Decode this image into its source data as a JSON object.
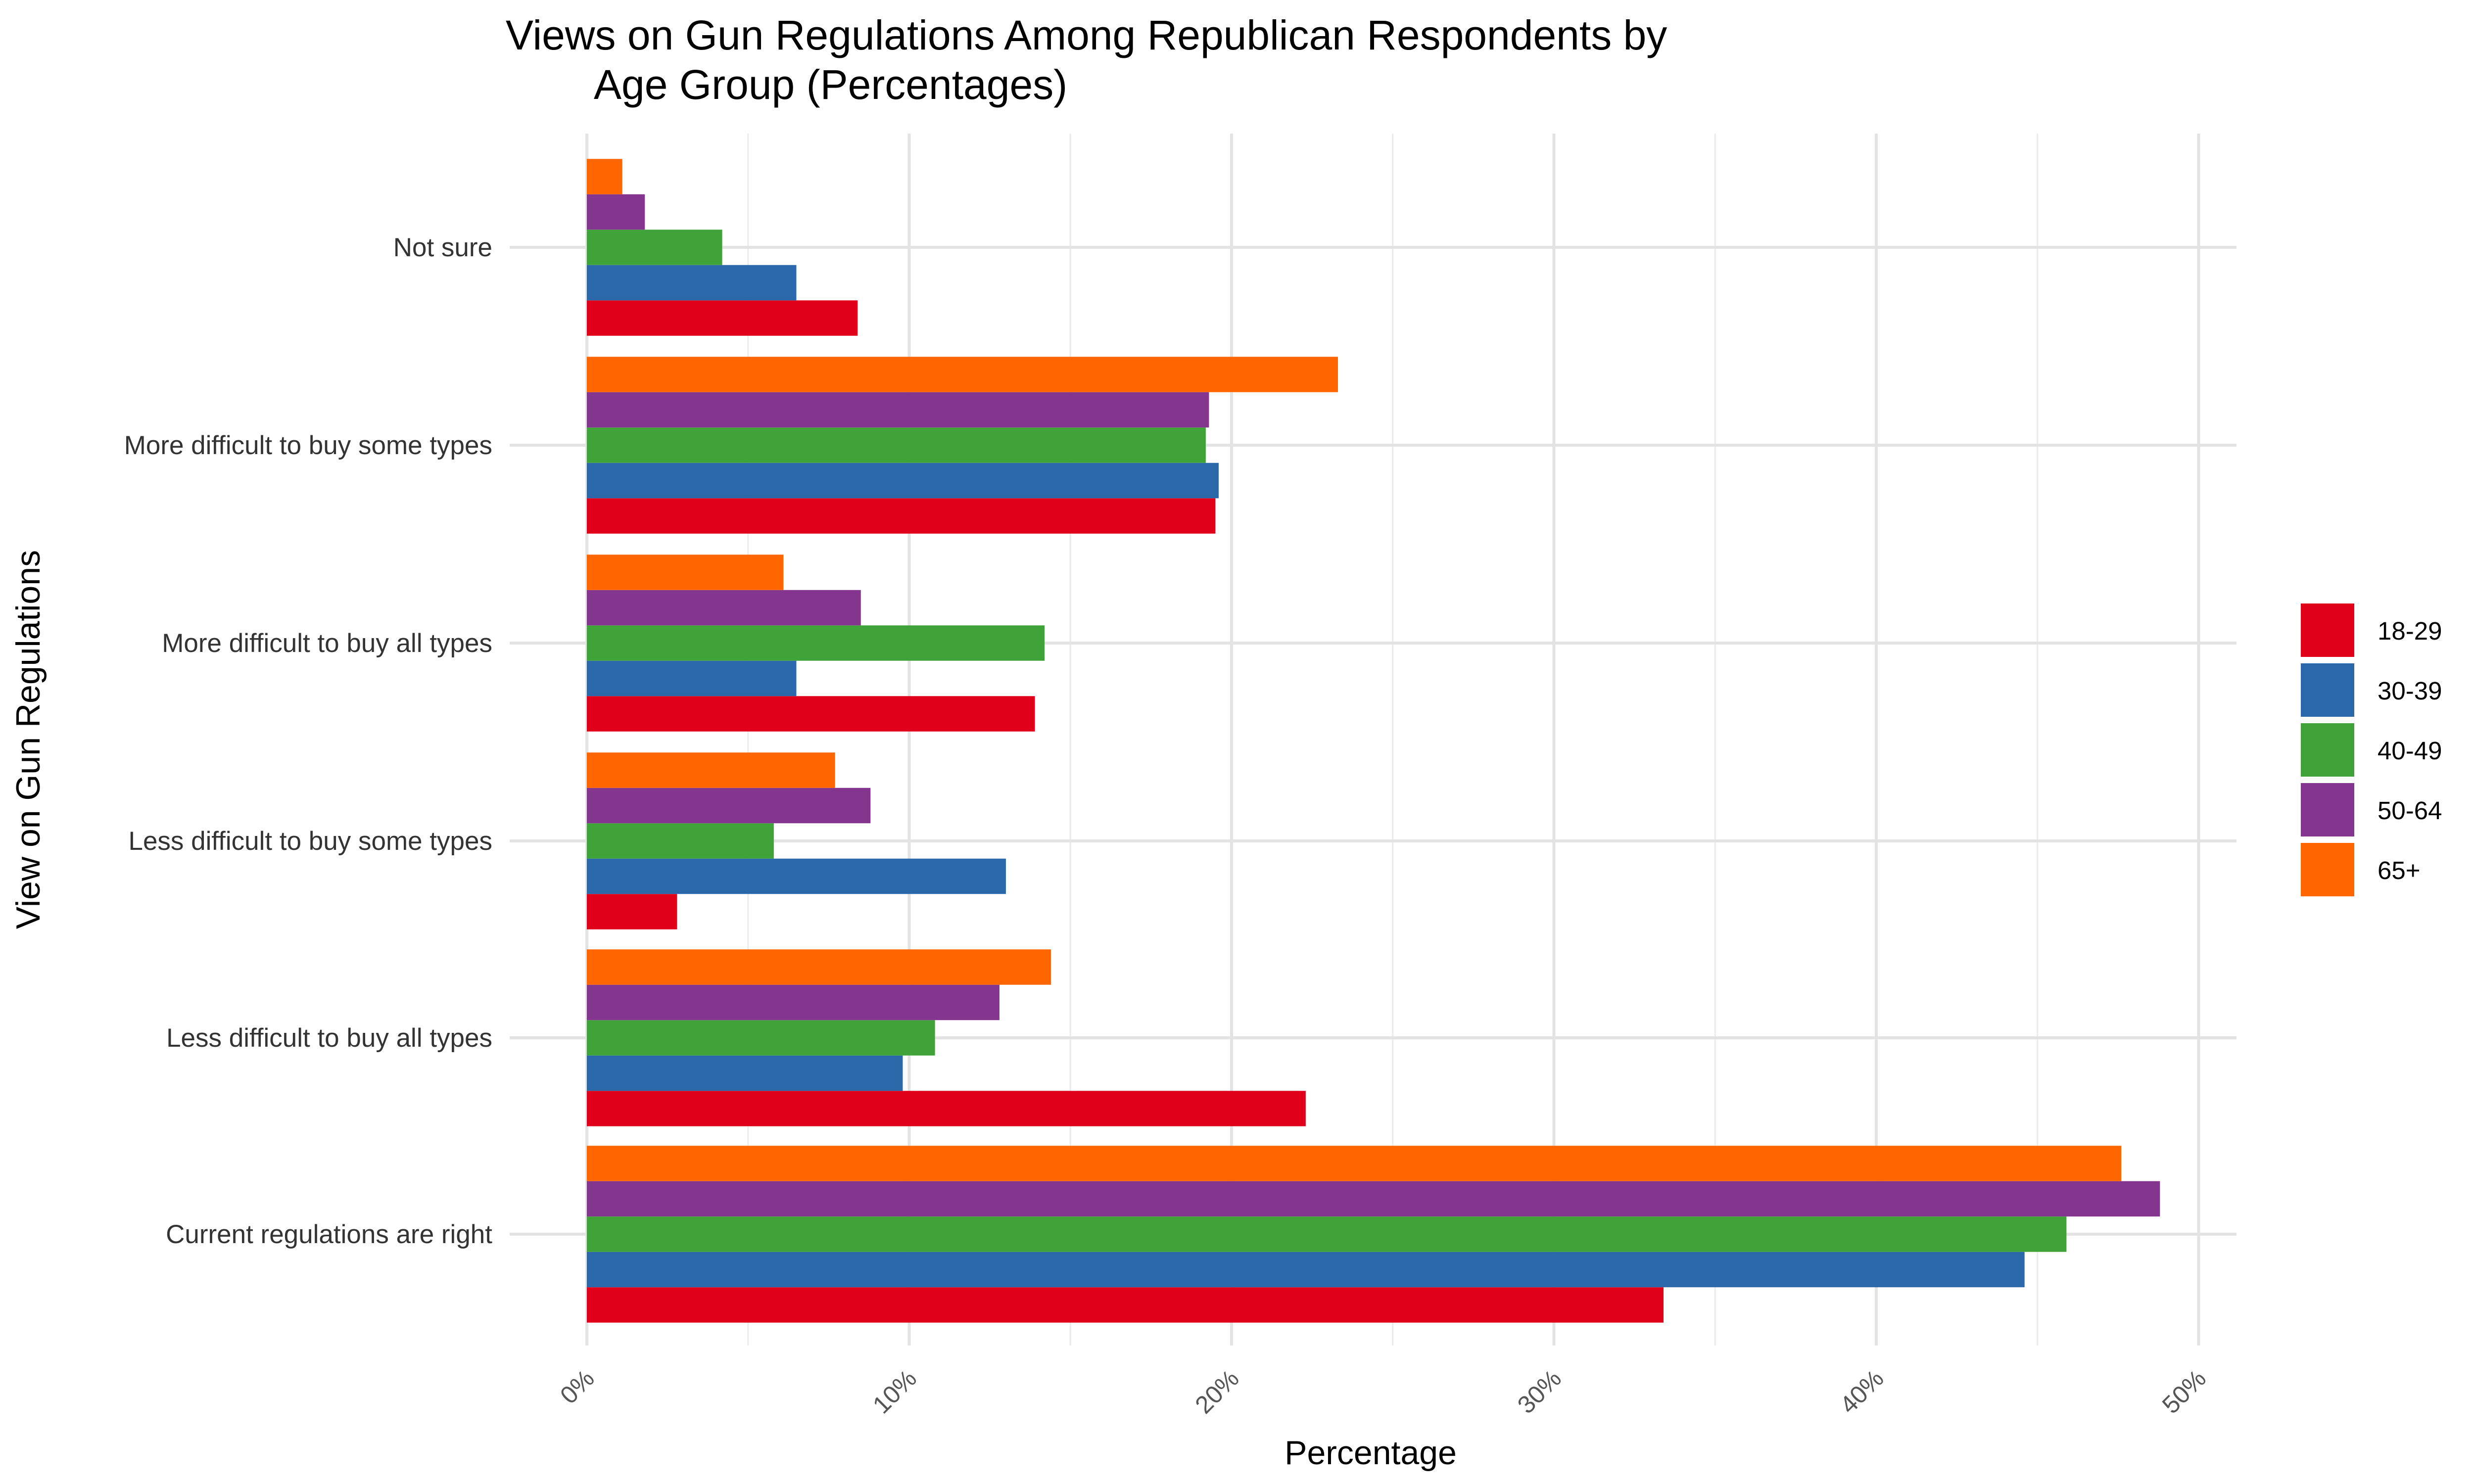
{
  "chart_data": {
    "type": "bar",
    "orientation": "horizontal",
    "title": "Views on Gun Regulations Among Republican Respondents by Age Group (Percentages)",
    "title_lines": [
      "Views on Gun Regulations Among Republican Respondents by",
      "Age Group (Percentages)"
    ],
    "xlabel": "Percentage",
    "ylabel": "View on Gun Regulations",
    "xlim": [
      0,
      51
    ],
    "x_ticks": [
      0,
      10,
      20,
      30,
      40,
      50
    ],
    "x_tick_labels": [
      "0%",
      "10%",
      "20%",
      "30%",
      "40%",
      "50%"
    ],
    "grid": true,
    "legend_position": "right",
    "categories": [
      "Current regulations are right",
      "Less difficult to buy all types",
      "Less difficult to buy some types",
      "More difficult to buy all types",
      "More difficult to buy some types",
      "Not sure"
    ],
    "series": [
      {
        "name": "18-29",
        "color": "#E0001A",
        "values": [
          33.4,
          22.3,
          2.8,
          13.9,
          19.5,
          8.4
        ]
      },
      {
        "name": "30-39",
        "color": "#2B68AA",
        "values": [
          44.6,
          9.8,
          13.0,
          6.5,
          19.6,
          6.5
        ]
      },
      {
        "name": "40-49",
        "color": "#3FA33A",
        "values": [
          45.9,
          10.8,
          5.8,
          14.2,
          19.2,
          4.2
        ]
      },
      {
        "name": "50-64",
        "color": "#84368F",
        "values": [
          48.8,
          12.8,
          8.8,
          8.5,
          19.3,
          1.8
        ]
      },
      {
        "name": "65+",
        "color": "#FF6600",
        "values": [
          47.6,
          14.4,
          7.7,
          6.1,
          23.3,
          1.1
        ]
      }
    ]
  }
}
